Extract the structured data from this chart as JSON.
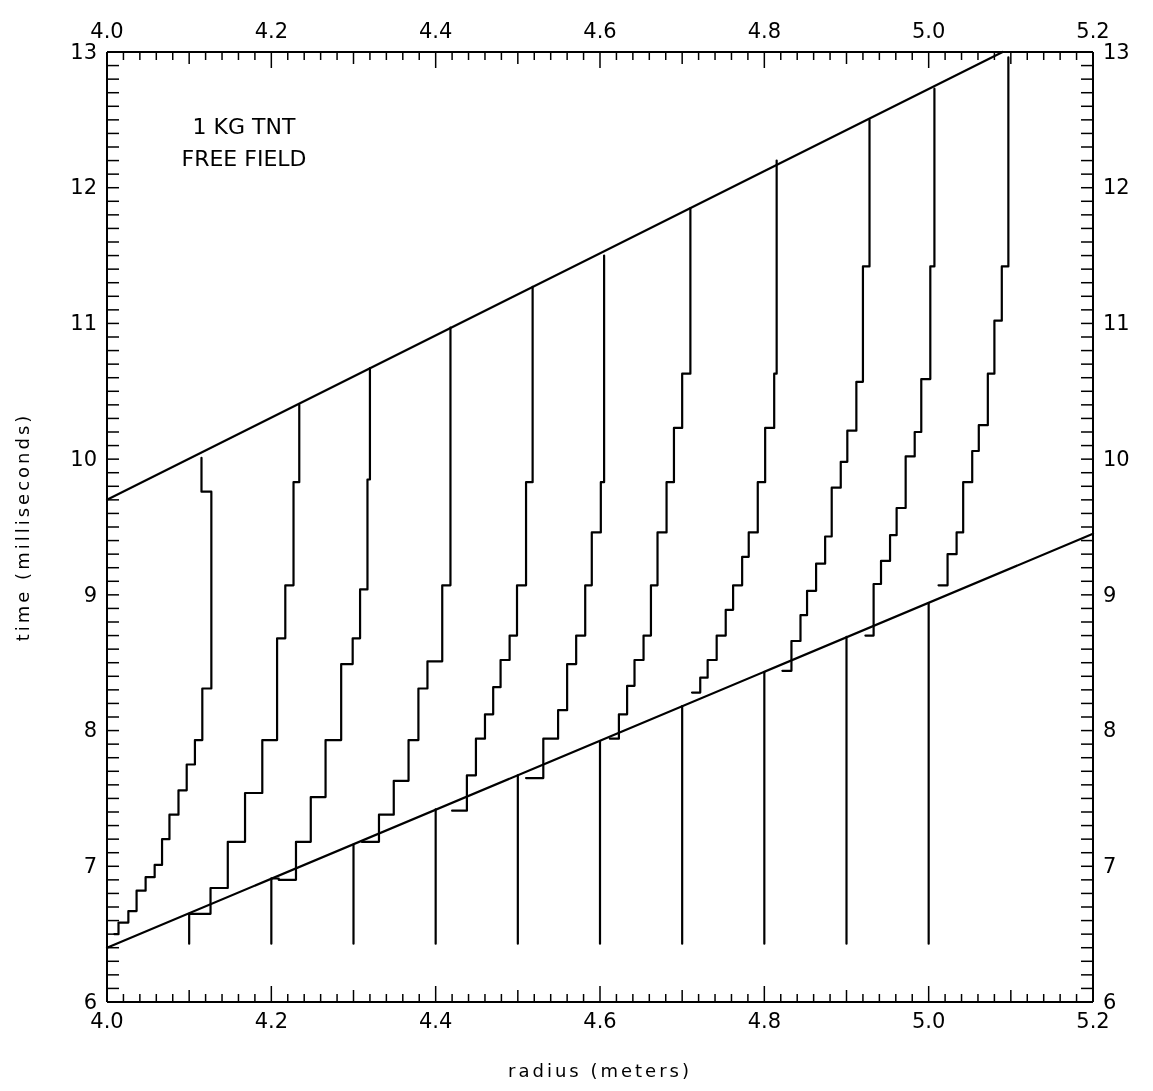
{
  "chart_data": {
    "type": "line",
    "xlabel": "radius (meters)",
    "ylabel": "time (milliseconds)",
    "annotations": [
      "1 KG TNT",
      "FREE FIELD"
    ],
    "xlim": [
      4.0,
      5.2
    ],
    "ylim": [
      6,
      13
    ],
    "x2lim": [
      4.0,
      5.2
    ],
    "y2lim": [
      6,
      13
    ],
    "xticks": [
      {
        "value": 4.0,
        "label": "4.0"
      },
      {
        "value": 4.02,
        "label": null
      },
      {
        "value": 4.04,
        "label": null
      },
      {
        "value": 4.06,
        "label": null
      },
      {
        "value": 4.08,
        "label": null
      },
      {
        "value": 4.1,
        "label": null
      },
      {
        "value": 4.12,
        "label": null
      },
      {
        "value": 4.14,
        "label": null
      },
      {
        "value": 4.16,
        "label": null
      },
      {
        "value": 4.18,
        "label": null
      },
      4.2,
      {
        "value": 4.22,
        "label": null
      },
      {
        "value": 4.24,
        "label": null
      },
      {
        "value": 4.26,
        "label": null
      },
      {
        "value": 4.28,
        "label": null
      },
      {
        "value": 4.3,
        "label": null
      },
      {
        "value": 4.32,
        "label": null
      },
      {
        "value": 4.34,
        "label": null
      },
      {
        "value": 4.36,
        "label": null
      },
      {
        "value": 4.38,
        "label": null
      },
      4.4,
      {
        "value": 4.42,
        "label": null
      },
      {
        "value": 4.44,
        "label": null
      },
      {
        "value": 4.46,
        "label": null
      },
      {
        "value": 4.48,
        "label": null
      },
      {
        "value": 4.5,
        "label": null
      },
      {
        "value": 4.52,
        "label": null
      },
      {
        "value": 4.54,
        "label": null
      },
      {
        "value": 4.56,
        "label": null
      },
      {
        "value": 4.58,
        "label": null
      },
      4.6,
      {
        "value": 4.62,
        "label": null
      },
      {
        "value": 4.64,
        "label": null
      },
      {
        "value": 4.66,
        "label": null
      },
      {
        "value": 4.68,
        "label": null
      },
      {
        "value": 4.7,
        "label": null
      },
      {
        "value": 4.72,
        "label": null
      },
      {
        "value": 4.74,
        "label": null
      },
      {
        "value": 4.76,
        "label": null
      },
      {
        "value": 4.78,
        "label": null
      },
      4.8,
      {
        "value": 4.82,
        "label": null
      },
      {
        "value": 4.84,
        "label": null
      },
      {
        "value": 4.86,
        "label": null
      },
      {
        "value": 4.88,
        "label": null
      },
      {
        "value": 4.9,
        "label": null
      },
      {
        "value": 4.92,
        "label": null
      },
      {
        "value": 4.94,
        "label": null
      },
      {
        "value": 4.96,
        "label": null
      },
      {
        "value": 4.98,
        "label": null
      },
      {
        "value": 5.0,
        "label": "5.0"
      },
      {
        "value": 5.02,
        "label": null
      },
      {
        "value": 5.04,
        "label": null
      },
      {
        "value": 5.06,
        "label": null
      },
      {
        "value": 5.08,
        "label": null
      },
      {
        "value": 5.1,
        "label": null
      },
      {
        "value": 5.12,
        "label": null
      },
      {
        "value": 5.14,
        "label": null
      },
      {
        "value": 5.16,
        "label": null
      },
      {
        "value": 5.18,
        "label": null
      },
      5.2
    ],
    "x2ticks": [
      {
        "value": 4.0,
        "label": "4.0"
      },
      {
        "value": 4.02,
        "label": null
      },
      {
        "value": 4.04,
        "label": null
      },
      {
        "value": 4.06,
        "label": null
      },
      {
        "value": 4.08,
        "label": null
      },
      {
        "value": 4.1,
        "label": null
      },
      {
        "value": 4.12,
        "label": null
      },
      {
        "value": 4.14,
        "label": null
      },
      {
        "value": 4.16,
        "label": null
      },
      {
        "value": 4.18,
        "label": null
      },
      4.2,
      {
        "value": 4.22,
        "label": null
      },
      {
        "value": 4.24,
        "label": null
      },
      {
        "value": 4.26,
        "label": null
      },
      {
        "value": 4.28,
        "label": null
      },
      {
        "value": 4.3,
        "label": null
      },
      {
        "value": 4.32,
        "label": null
      },
      {
        "value": 4.34,
        "label": null
      },
      {
        "value": 4.36,
        "label": null
      },
      {
        "value": 4.38,
        "label": null
      },
      4.4,
      {
        "value": 4.42,
        "label": null
      },
      {
        "value": 4.44,
        "label": null
      },
      {
        "value": 4.46,
        "label": null
      },
      {
        "value": 4.48,
        "label": null
      },
      {
        "value": 4.5,
        "label": null
      },
      {
        "value": 4.52,
        "label": null
      },
      {
        "value": 4.54,
        "label": null
      },
      {
        "value": 4.56,
        "label": null
      },
      {
        "value": 4.58,
        "label": null
      },
      4.6,
      {
        "value": 4.62,
        "label": null
      },
      {
        "value": 4.64,
        "label": null
      },
      {
        "value": 4.66,
        "label": null
      },
      {
        "value": 4.68,
        "label": null
      },
      {
        "value": 4.7,
        "label": null
      },
      {
        "value": 4.72,
        "label": null
      },
      {
        "value": 4.74,
        "label": null
      },
      {
        "value": 4.76,
        "label": null
      },
      {
        "value": 4.78,
        "label": null
      },
      4.8,
      {
        "value": 4.82,
        "label": null
      },
      {
        "value": 4.84,
        "label": null
      },
      {
        "value": 4.86,
        "label": null
      },
      {
        "value": 4.88,
        "label": null
      },
      {
        "value": 4.9,
        "label": null
      },
      {
        "value": 4.92,
        "label": null
      },
      {
        "value": 4.94,
        "label": null
      },
      {
        "value": 4.96,
        "label": null
      },
      {
        "value": 4.98,
        "label": null
      },
      {
        "value": 5.0,
        "label": "5.0"
      },
      {
        "value": 5.02,
        "label": null
      },
      {
        "value": 5.04,
        "label": null
      },
      {
        "value": 5.06,
        "label": null
      },
      {
        "value": 5.08,
        "label": null
      },
      {
        "value": 5.1,
        "label": null
      },
      {
        "value": 5.12,
        "label": null
      },
      {
        "value": 5.14,
        "label": null
      },
      {
        "value": 5.16,
        "label": null
      },
      {
        "value": 5.18,
        "label": null
      },
      5.2
    ],
    "yticks": [
      6,
      {
        "value": 6.1,
        "label": null
      },
      {
        "value": 6.2,
        "label": null
      },
      {
        "value": 6.3,
        "label": null
      },
      {
        "value": 6.4,
        "label": null
      },
      {
        "value": 6.5,
        "label": null
      },
      {
        "value": 6.6,
        "label": null
      },
      {
        "value": 6.7,
        "label": null
      },
      {
        "value": 6.8,
        "label": null
      },
      {
        "value": 6.9,
        "label": null
      },
      7,
      {
        "value": 7.1,
        "label": null
      },
      {
        "value": 7.2,
        "label": null
      },
      {
        "value": 7.3,
        "label": null
      },
      {
        "value": 7.4,
        "label": null
      },
      {
        "value": 7.5,
        "label": null
      },
      {
        "value": 7.6,
        "label": null
      },
      {
        "value": 7.7,
        "label": null
      },
      {
        "value": 7.8,
        "label": null
      },
      {
        "value": 7.9,
        "label": null
      },
      8,
      {
        "value": 8.1,
        "label": null
      },
      {
        "value": 8.2,
        "label": null
      },
      {
        "value": 8.3,
        "label": null
      },
      {
        "value": 8.4,
        "label": null
      },
      {
        "value": 8.5,
        "label": null
      },
      {
        "value": 8.6,
        "label": null
      },
      {
        "value": 8.7,
        "label": null
      },
      {
        "value": 8.8,
        "label": null
      },
      {
        "value": 8.9,
        "label": null
      },
      9,
      {
        "value": 9.1,
        "label": null
      },
      {
        "value": 9.2,
        "label": null
      },
      {
        "value": 9.3,
        "label": null
      },
      {
        "value": 9.4,
        "label": null
      },
      {
        "value": 9.5,
        "label": null
      },
      {
        "value": 9.6,
        "label": null
      },
      {
        "value": 9.7,
        "label": null
      },
      {
        "value": 9.8,
        "label": null
      },
      {
        "value": 9.9,
        "label": null
      },
      10,
      {
        "value": 10.1,
        "label": null
      },
      {
        "value": 10.2,
        "label": null
      },
      {
        "value": 10.3,
        "label": null
      },
      {
        "value": 10.4,
        "label": null
      },
      {
        "value": 10.5,
        "label": null
      },
      {
        "value": 10.6,
        "label": null
      },
      {
        "value": 10.7,
        "label": null
      },
      {
        "value": 10.8,
        "label": null
      },
      {
        "value": 10.9,
        "label": null
      },
      11,
      {
        "value": 11.1,
        "label": null
      },
      {
        "value": 11.2,
        "label": null
      },
      {
        "value": 11.3,
        "label": null
      },
      {
        "value": 11.4,
        "label": null
      },
      {
        "value": 11.5,
        "label": null
      },
      {
        "value": 11.6,
        "label": null
      },
      {
        "value": 11.7,
        "label": null
      },
      {
        "value": 11.8,
        "label": null
      },
      {
        "value": 11.9,
        "label": null
      },
      12,
      {
        "value": 12.1,
        "label": null
      },
      {
        "value": 12.2,
        "label": null
      },
      {
        "value": 12.3,
        "label": null
      },
      {
        "value": 12.4,
        "label": null
      },
      {
        "value": 12.5,
        "label": null
      },
      {
        "value": 12.6,
        "label": null
      },
      {
        "value": 12.7,
        "label": null
      },
      {
        "value": 12.8,
        "label": null
      },
      {
        "value": 12.9,
        "label": null
      },
      13
    ],
    "y2ticks": [
      6,
      {
        "value": 6.1,
        "label": null
      },
      {
        "value": 6.2,
        "label": null
      },
      {
        "value": 6.3,
        "label": null
      },
      {
        "value": 6.4,
        "label": null
      },
      {
        "value": 6.5,
        "label": null
      },
      {
        "value": 6.6,
        "label": null
      },
      {
        "value": 6.7,
        "label": null
      },
      {
        "value": 6.8,
        "label": null
      },
      {
        "value": 6.9,
        "label": null
      },
      7,
      {
        "value": 7.1,
        "label": null
      },
      {
        "value": 7.2,
        "label": null
      },
      {
        "value": 7.3,
        "label": null
      },
      {
        "value": 7.4,
        "label": null
      },
      {
        "value": 7.5,
        "label": null
      },
      {
        "value": 7.6,
        "label": null
      },
      {
        "value": 7.7,
        "label": null
      },
      {
        "value": 7.8,
        "label": null
      },
      {
        "value": 7.9,
        "label": null
      },
      8,
      {
        "value": 8.1,
        "label": null
      },
      {
        "value": 8.2,
        "label": null
      },
      {
        "value": 8.3,
        "label": null
      },
      {
        "value": 8.4,
        "label": null
      },
      {
        "value": 8.5,
        "label": null
      },
      {
        "value": 8.6,
        "label": null
      },
      {
        "value": 8.7,
        "label": null
      },
      {
        "value": 8.8,
        "label": null
      },
      {
        "value": 8.9,
        "label": null
      },
      9,
      {
        "value": 9.1,
        "label": null
      },
      {
        "value": 9.2,
        "label": null
      },
      {
        "value": 9.3,
        "label": null
      },
      {
        "value": 9.4,
        "label": null
      },
      {
        "value": 9.5,
        "label": null
      },
      {
        "value": 9.6,
        "label": null
      },
      {
        "value": 9.7,
        "label": null
      },
      {
        "value": 9.8,
        "label": null
      },
      {
        "value": 9.9,
        "label": null
      },
      10,
      {
        "value": 10.1,
        "label": null
      },
      {
        "value": 10.2,
        "label": null
      },
      {
        "value": 10.3,
        "label": null
      },
      {
        "value": 10.4,
        "label": null
      },
      {
        "value": 10.5,
        "label": null
      },
      {
        "value": 10.6,
        "label": null
      },
      {
        "value": 10.7,
        "label": null
      },
      {
        "value": 10.8,
        "label": null
      },
      {
        "value": 10.9,
        "label": null
      },
      11,
      {
        "value": 11.1,
        "label": null
      },
      {
        "value": 11.2,
        "label": null
      },
      {
        "value": 11.3,
        "label": null
      },
      {
        "value": 11.4,
        "label": null
      },
      {
        "value": 11.5,
        "label": null
      },
      {
        "value": 11.6,
        "label": null
      },
      {
        "value": 11.7,
        "label": null
      },
      {
        "value": 11.8,
        "label": null
      },
      {
        "value": 11.9,
        "label": null
      },
      12,
      {
        "value": 12.1,
        "label": null
      },
      {
        "value": 12.2,
        "label": null
      },
      {
        "value": 12.3,
        "label": null
      },
      {
        "value": 12.4,
        "label": null
      },
      {
        "value": 12.5,
        "label": null
      },
      {
        "value": 12.6,
        "label": null
      },
      {
        "value": 12.7,
        "label": null
      },
      {
        "value": 12.8,
        "label": null
      },
      {
        "value": 12.9,
        "label": null
      },
      13
    ],
    "series": [
      {
        "color": "#000000",
        "x": [
          4.0,
          5.09
        ],
        "values": [
          9.7,
          13.0
        ]
      },
      {
        "color": "#000000",
        "x": [
          4.0,
          5.2
        ],
        "values": [
          6.4,
          9.45
        ]
      },
      {
        "color": "#000000",
        "x": [
          4.1,
          4.1
        ],
        "values": [
          6.43,
          6.65
        ]
      },
      {
        "color": "#000000",
        "x": [
          4.2,
          4.2
        ],
        "values": [
          6.43,
          6.91
        ]
      },
      {
        "color": "#000000",
        "x": [
          4.3,
          4.3
        ],
        "values": [
          6.43,
          7.16
        ]
      },
      {
        "color": "#000000",
        "x": [
          4.4,
          4.4
        ],
        "values": [
          6.43,
          7.42
        ]
      },
      {
        "color": "#000000",
        "x": [
          4.5,
          4.5
        ],
        "values": [
          6.43,
          7.67
        ]
      },
      {
        "color": "#000000",
        "x": [
          4.6,
          4.6
        ],
        "values": [
          6.43,
          7.92
        ]
      },
      {
        "color": "#000000",
        "x": [
          4.7,
          4.7
        ],
        "values": [
          6.43,
          8.18
        ]
      },
      {
        "color": "#000000",
        "x": [
          4.8,
          4.8
        ],
        "values": [
          6.43,
          8.43
        ]
      },
      {
        "color": "#000000",
        "x": [
          4.9,
          4.9
        ],
        "values": [
          6.43,
          8.69
        ]
      },
      {
        "color": "#000000",
        "x": [
          5.0,
          5.0
        ],
        "values": [
          6.43,
          8.94
        ]
      },
      {
        "type": "step",
        "color": "#000000",
        "x": [
          4.009,
          4.014,
          4.026,
          4.036,
          4.047,
          4.058,
          4.067,
          4.076,
          4.087,
          4.097,
          4.107,
          4.116,
          4.127,
          4.115
        ],
        "values": [
          6.5,
          6.585,
          6.67,
          6.82,
          6.92,
          7.01,
          7.2,
          7.38,
          7.56,
          7.75,
          7.93,
          8.31,
          9.76,
          10.01
        ]
      },
      {
        "type": "step",
        "color": "#000000",
        "x": [
          4.1,
          4.115,
          4.126,
          4.147,
          4.168,
          4.189,
          4.207,
          4.217,
          4.227,
          4.234
        ],
        "values": [
          6.65,
          6.65,
          6.84,
          7.18,
          7.54,
          7.93,
          8.68,
          9.07,
          9.83,
          10.4
        ]
      },
      {
        "type": "step",
        "color": "#000000",
        "x": [
          4.2,
          4.209,
          4.23,
          4.248,
          4.266,
          4.285,
          4.299,
          4.308,
          4.317,
          4.32
        ],
        "values": [
          6.91,
          6.9,
          7.18,
          7.51,
          7.93,
          8.49,
          8.68,
          9.04,
          9.85,
          10.67
        ]
      },
      {
        "type": "step",
        "color": "#000000",
        "x": [
          4.31,
          4.331,
          4.349,
          4.367,
          4.379,
          4.39,
          4.408,
          4.418,
          4.418
        ],
        "values": [
          7.18,
          7.38,
          7.63,
          7.93,
          8.31,
          8.51,
          9.07,
          9.85,
          10.97
        ]
      },
      {
        "type": "step",
        "color": "#000000",
        "x": [
          4.42,
          4.438,
          4.449,
          4.46,
          4.47,
          4.479,
          4.49,
          4.499,
          4.51,
          4.518
        ],
        "values": [
          7.41,
          7.67,
          7.94,
          8.12,
          8.32,
          8.52,
          8.7,
          9.07,
          9.83,
          11.27
        ]
      },
      {
        "type": "step",
        "color": "#000000",
        "x": [
          4.51,
          4.531,
          4.549,
          4.56,
          4.571,
          4.582,
          4.59,
          4.601,
          4.605
        ],
        "values": [
          7.65,
          7.94,
          8.15,
          8.49,
          8.7,
          9.07,
          9.46,
          9.83,
          11.5
        ]
      },
      {
        "type": "step",
        "color": "#000000",
        "x": [
          4.612,
          4.623,
          4.633,
          4.642,
          4.653,
          4.662,
          4.67,
          4.681,
          4.69,
          4.7,
          4.71
        ],
        "values": [
          7.94,
          8.12,
          8.33,
          8.52,
          8.7,
          9.07,
          9.46,
          9.83,
          10.23,
          10.63,
          11.85
        ]
      },
      {
        "type": "step",
        "color": "#000000",
        "x": [
          4.712,
          4.722,
          4.731,
          4.742,
          4.753,
          4.762,
          4.773,
          4.781,
          4.792,
          4.801,
          4.812,
          4.815
        ],
        "values": [
          8.28,
          8.39,
          8.52,
          8.7,
          8.89,
          9.07,
          9.28,
          9.46,
          9.83,
          10.23,
          10.63,
          12.2
        ]
      },
      {
        "type": "step",
        "color": "#000000",
        "x": [
          4.822,
          4.833,
          4.844,
          4.852,
          4.863,
          4.874,
          4.882,
          4.893,
          4.901,
          4.912,
          4.92,
          4.928
        ],
        "values": [
          8.44,
          8.66,
          8.85,
          9.03,
          9.23,
          9.43,
          9.79,
          9.98,
          10.21,
          10.57,
          11.42,
          12.5
        ]
      },
      {
        "type": "step",
        "color": "#000000",
        "x": [
          4.923,
          4.933,
          4.942,
          4.953,
          4.961,
          4.972,
          4.983,
          4.991,
          5.002,
          5.007
        ],
        "values": [
          8.7,
          9.08,
          9.25,
          9.44,
          9.64,
          10.02,
          10.2,
          10.59,
          11.42,
          12.73
        ]
      },
      {
        "type": "step",
        "color": "#000000",
        "x": [
          5.012,
          5.023,
          5.034,
          5.042,
          5.053,
          5.061,
          5.072,
          5.08,
          5.089,
          5.097
        ],
        "values": [
          9.07,
          9.3,
          9.46,
          9.83,
          10.06,
          10.25,
          10.63,
          11.02,
          11.42,
          12.96
        ]
      }
    ]
  }
}
